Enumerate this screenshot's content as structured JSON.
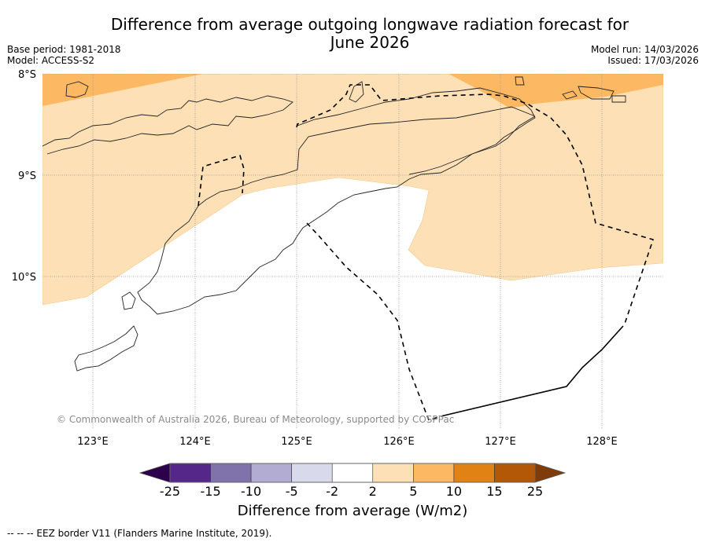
{
  "header": {
    "title_line1": "Difference from average outgoing longwave radiation forecast for",
    "title_line2": "June 2026",
    "base_period": "Base period: 1981-2018",
    "model": "Model: ACCESS-S2",
    "model_run": "Model run: 14/03/2026",
    "issued": "Issued: 17/03/2026"
  },
  "map": {
    "latitude_labels": [
      "8°S",
      "9°S",
      "10°S"
    ],
    "longitude_labels": [
      "123°E",
      "124°E",
      "125°E",
      "126°E",
      "127°E",
      "128°E"
    ],
    "latitudes": [
      -8,
      -9,
      -10
    ],
    "longitudes": [
      123,
      124,
      125,
      126,
      127,
      128
    ],
    "extent": {
      "lon_min": 122.5,
      "lon_max": 128.6,
      "lat_max": -8.0,
      "lat_min": -11.5
    },
    "copyright": "© Commonwealth of Australia 2026, Bureau of Meteorology, supported by COSPPac",
    "regions": [
      {
        "class": "5 to 10",
        "color": "#fdb863",
        "area": "north-west strip near 8°S"
      },
      {
        "class": "5 to 10",
        "color": "#fdb863",
        "area": "north-east strip near 8°S"
      },
      {
        "class": "2 to 5",
        "color": "#fee0b6",
        "area": "northern and eastern band"
      },
      {
        "class": "-2 to 2",
        "color": "#ffffff",
        "area": "south and Timor"
      }
    ]
  },
  "colorbar": {
    "ticks": [
      "-25",
      "-15",
      "-10",
      "-5",
      "-2",
      "2",
      "5",
      "10",
      "15",
      "25"
    ],
    "colors": [
      "#542788",
      "#8073ac",
      "#b2abd2",
      "#d8daeb",
      "#ffffff",
      "#fee0b6",
      "#fdb863",
      "#e08214",
      "#b35806"
    ],
    "under_color": "#2d004b",
    "over_color": "#7f3b08",
    "label": "Difference from average (W/m2)"
  },
  "footnote": "--  --  -- EEZ border V11 (Flanders Marine Institute, 2019)."
}
